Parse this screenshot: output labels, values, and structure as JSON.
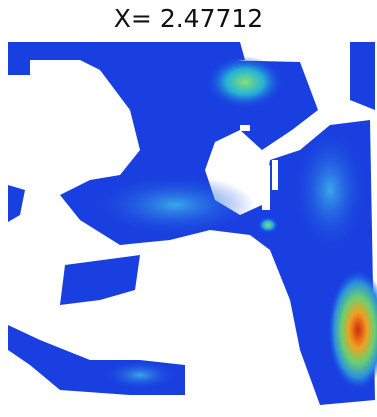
{
  "title": "X= 2.47712"
}
